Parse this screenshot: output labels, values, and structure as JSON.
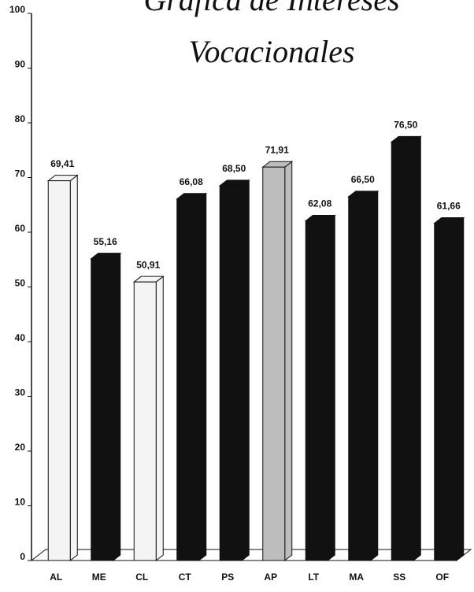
{
  "chart_data": {
    "type": "bar3d",
    "title": [
      "Gráfica de Intereses",
      "Vocacionales"
    ],
    "categories": [
      "AL",
      "ME",
      "CL",
      "CT",
      "PS",
      "AP",
      "LT",
      "MA",
      "SS",
      "OF"
    ],
    "values": [
      69.41,
      55.16,
      50.91,
      66.08,
      68.5,
      71.91,
      62.08,
      66.5,
      76.5,
      61.66
    ],
    "value_labels": [
      "69,41",
      "55,16",
      "50,91",
      "66,08",
      "68,50",
      "71,91",
      "62,08",
      "66,50",
      "76,50",
      "61,66"
    ],
    "colors": [
      "#f4f4f4",
      "#111111",
      "#f4f4f4",
      "#111111",
      "#111111",
      "#bdbdbd",
      "#111111",
      "#111111",
      "#111111",
      "#111111"
    ],
    "ylim": [
      0,
      100
    ],
    "yticks": [
      0,
      10,
      20,
      30,
      40,
      50,
      60,
      70,
      80,
      90,
      100
    ]
  }
}
